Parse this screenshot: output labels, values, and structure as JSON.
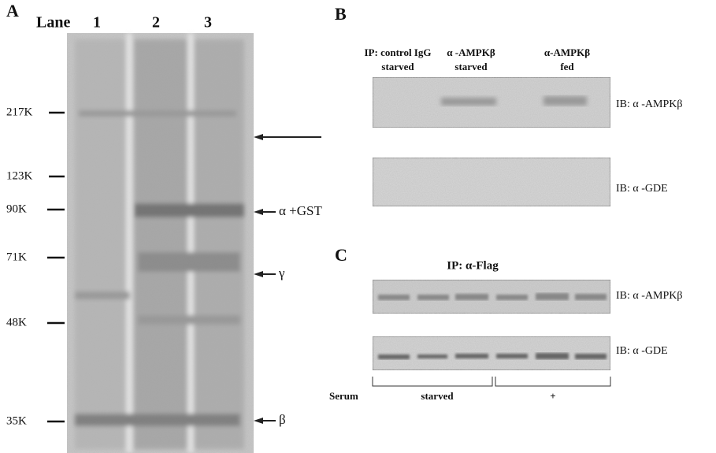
{
  "panel_a": {
    "label": "A",
    "lane_header": "Lane",
    "lanes": [
      "1",
      "2",
      "3"
    ],
    "markers": [
      "217K",
      "123K",
      "90K",
      "71K",
      "48K",
      "35K"
    ],
    "annotations": [
      "α +GST",
      "γ",
      "β"
    ]
  },
  "panel_b": {
    "label": "B",
    "columns": [
      {
        "ip": "IP: control IgG",
        "condition": "starved"
      },
      {
        "ip": "α -AMPKβ",
        "condition": "starved"
      },
      {
        "ip": "α-AMPKβ",
        "condition": "fed"
      }
    ],
    "blots": [
      "IB: α -AMPKβ",
      "IB: α -GDE"
    ]
  },
  "panel_c": {
    "label": "C",
    "ip": "IP: α-Flag",
    "blots": [
      "IB: α -AMPKβ",
      "IB: α -GDE"
    ],
    "row_label": "Serum",
    "groups": [
      "starved",
      "+"
    ]
  }
}
